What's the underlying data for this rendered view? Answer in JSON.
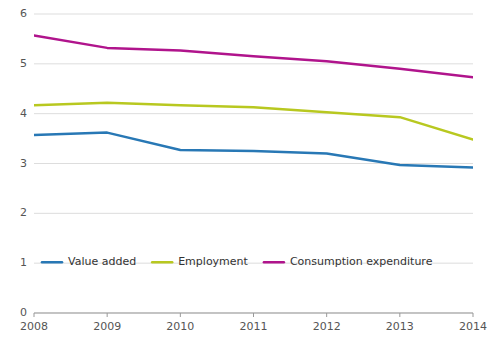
{
  "chart_data": {
    "type": "line",
    "x": [
      2008,
      2009,
      2010,
      2011,
      2012,
      2013,
      2014
    ],
    "series": [
      {
        "name": "Value added",
        "color": "#2878b5",
        "values": [
          3.57,
          3.62,
          3.27,
          3.25,
          3.2,
          2.97,
          2.92
        ]
      },
      {
        "name": "Employment",
        "color": "#b8c820",
        "values": [
          4.17,
          4.22,
          4.17,
          4.13,
          4.03,
          3.93,
          3.48
        ]
      },
      {
        "name": "Consumption expenditure",
        "color": "#b0148c",
        "values": [
          5.57,
          5.32,
          5.27,
          5.15,
          5.05,
          4.9,
          4.73
        ]
      }
    ],
    "xlim": [
      2008,
      2014
    ],
    "xticks": [
      2008,
      2009,
      2010,
      2011,
      2012,
      2013,
      2014
    ],
    "ylim": [
      0,
      6
    ],
    "yticks": [
      0,
      1,
      2,
      3,
      4,
      5,
      6
    ],
    "grid": "y",
    "legend": "lower left"
  }
}
